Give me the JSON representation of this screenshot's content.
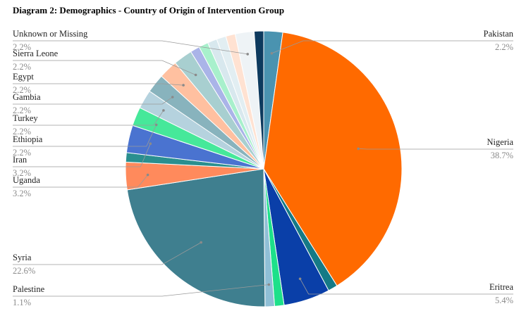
{
  "chart_data": {
    "type": "pie",
    "title": "Diagram 2: Demographics - Country of Origin of Intervention Group",
    "slices": [
      {
        "label": "Pakistan",
        "value": 2.2,
        "color": "#4a93b0",
        "pct_label": "2.2%"
      },
      {
        "label": "Nigeria",
        "value": 38.7,
        "color": "#ff6a00",
        "pct_label": "38.7%"
      },
      {
        "label": "",
        "value": 1.1,
        "color": "#157a86"
      },
      {
        "label": "Eritrea",
        "value": 5.4,
        "color": "#0a3fa8",
        "pct_label": "5.4%"
      },
      {
        "label": "",
        "value": 1.1,
        "color": "#1de08a"
      },
      {
        "label": "Palestine",
        "value": 1.1,
        "color": "#8fbfd6",
        "pct_label": "1.1%"
      },
      {
        "label": "Syria",
        "value": 22.6,
        "color": "#3f7f8f",
        "pct_label": "22.6%"
      },
      {
        "label": "Uganda",
        "value": 3.2,
        "color": "#ff8a5c",
        "pct_label": "3.2%"
      },
      {
        "label": "",
        "value": 1.1,
        "color": "#2a8f8f"
      },
      {
        "label": "Iran",
        "value": 3.2,
        "color": "#4a73d0",
        "pct_label": "3.2%"
      },
      {
        "label": "Ethiopia",
        "value": 2.2,
        "color": "#46e89a",
        "pct_label": "2.2%"
      },
      {
        "label": "Turkey",
        "value": 2.2,
        "color": "#b5d2de",
        "pct_label": "2.2%"
      },
      {
        "label": "Gambia",
        "value": 2.2,
        "color": "#88b3bd",
        "pct_label": "2.2%"
      },
      {
        "label": "Egypt",
        "value": 2.2,
        "color": "#ffc0a0",
        "pct_label": "2.2%"
      },
      {
        "label": "Sierra Leone",
        "value": 2.2,
        "color": "#a8cfd0",
        "pct_label": "2.2%"
      },
      {
        "label": "",
        "value": 1.1,
        "color": "#aab4e8"
      },
      {
        "label": "",
        "value": 1.1,
        "color": "#a8f0cc"
      },
      {
        "label": "",
        "value": 1.1,
        "color": "#d8e8ee"
      },
      {
        "label": "",
        "value": 1.1,
        "color": "#e2eef2"
      },
      {
        "label": "",
        "value": 1.1,
        "color": "#ffe2d2"
      },
      {
        "label": "Unknown or Missing",
        "value": 2.2,
        "color": "#eef3f6",
        "pct_label": "2.2%"
      },
      {
        "label": "",
        "value": 1.1,
        "color": "#0d3a5e"
      }
    ],
    "legend": "callout labels",
    "grid": false
  }
}
